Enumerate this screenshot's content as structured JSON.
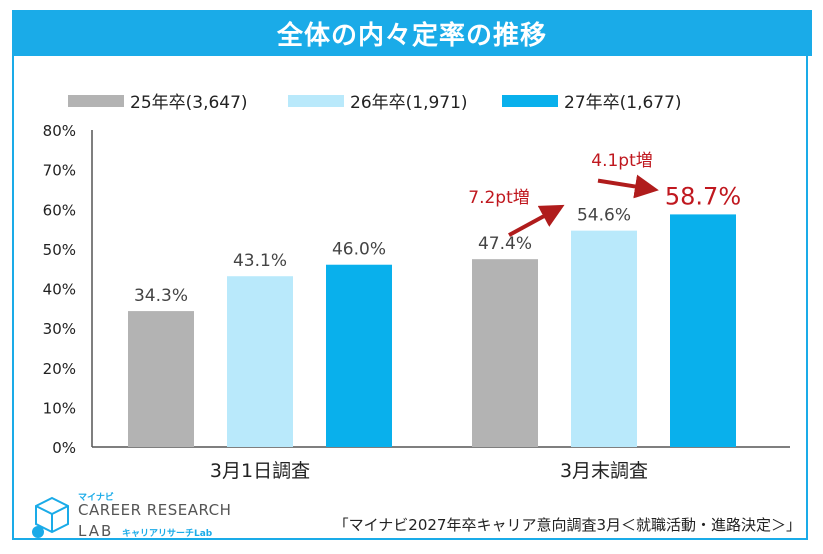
{
  "header": {
    "title": "全体の内々定率の推移"
  },
  "legend": [
    {
      "label": "25年卒(3,647)",
      "color": "#b3b3b3"
    },
    {
      "label": "26年卒(1,971)",
      "color": "#b9e9fb"
    },
    {
      "label": "27年卒(1,677)",
      "color": "#09b0ec"
    }
  ],
  "chart_data": {
    "type": "bar",
    "title": "全体の内々定率の推移",
    "categories": [
      "3月1日調査",
      "3月末調査"
    ],
    "series": [
      {
        "name": "25年卒(3,647)",
        "values": [
          34.3,
          47.4
        ],
        "labels": [
          "34.3%",
          "47.4%"
        ]
      },
      {
        "name": "26年卒(1,971)",
        "values": [
          43.1,
          54.6
        ],
        "labels": [
          "43.1%",
          "54.6%"
        ]
      },
      {
        "name": "27年卒(1,677)",
        "values": [
          46.0,
          58.7
        ],
        "labels": [
          "46.0%",
          "58.7%"
        ]
      }
    ],
    "ylim": [
      0,
      80
    ],
    "yticks": [
      "0%",
      "10%",
      "20%",
      "30%",
      "40%",
      "50%",
      "60%",
      "70%",
      "80%"
    ],
    "grid": false,
    "legend_position": "top",
    "annotations": [
      {
        "text": "7.2pt増",
        "color": "#c0181f"
      },
      {
        "text": "4.1pt増",
        "color": "#c0181f"
      }
    ]
  },
  "logo": {
    "small": "マイナビ",
    "main": "CAREER RESEARCH",
    "lab": "LAB",
    "sub": "キャリアリサーチLab"
  },
  "footer": {
    "source": "「マイナビ2027年卒キャリア意向調査3月＜就職活動・進路決定＞」"
  }
}
